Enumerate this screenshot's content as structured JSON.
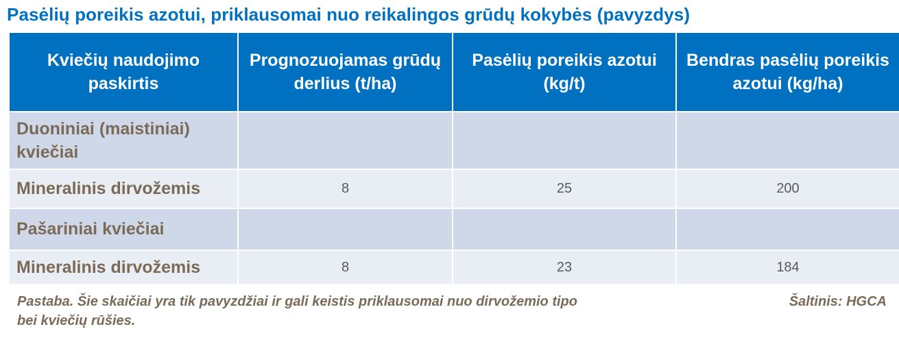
{
  "title": "Pasėlių poreikis azotui, priklausomai nuo reikalingos grūdų kokybės (pavyzdys)",
  "table": {
    "headers": [
      "Kviečių naudojimo paskirtis",
      "Prognozuojamas grūdų derlius (t/ha)",
      "Pasėlių poreikis azotui  (kg/t)",
      "Bendras pasėlių poreikis azotui (kg/ha)"
    ],
    "rows": [
      [
        "Duoniniai (maistiniai) kviečiai",
        "",
        "",
        ""
      ],
      [
        "Mineralinis dirvožemis",
        "8",
        "25",
        "200"
      ],
      [
        "Pašariniai kviečiai",
        "",
        "",
        ""
      ],
      [
        "Mineralinis dirvožemis",
        "8",
        "23",
        "184"
      ]
    ]
  },
  "note": "Pastaba. Šie skaičiai yra tik pavyzdžiai ir gali keistis priklausomai nuo dirvožemio tipo bei kviečių rūšies.",
  "source": "Šaltinis:  HGCA",
  "colors": {
    "title": "#0070c0",
    "header_bg": "#0070c0",
    "row_dark": "#cfd8e8",
    "row_light": "#e9edf4",
    "label_text": "#7a6a57"
  }
}
